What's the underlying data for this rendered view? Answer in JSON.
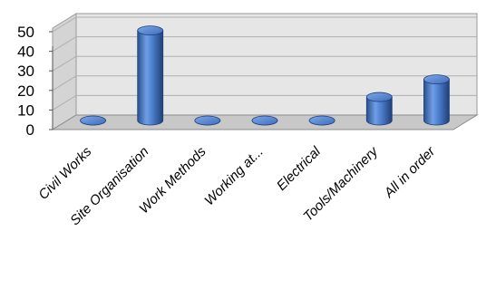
{
  "chart_data": {
    "type": "bar",
    "style": "3d-cylinder",
    "categories": [
      "Civil Works",
      "Site Organisation",
      "Work Methods",
      "Working at...",
      "Electrical",
      "Tools/Machinery",
      "All in order"
    ],
    "values": [
      0,
      46,
      0,
      0,
      0,
      12,
      21
    ],
    "ylim": [
      0,
      50
    ],
    "yticks": [
      0,
      10,
      20,
      30,
      40,
      50
    ],
    "grid": true,
    "legend": "none",
    "colors": {
      "bar": "#4472c4",
      "wall": "#e6e6e6",
      "floor": "#c8c8c8",
      "grid": "#b0b0b0"
    }
  }
}
